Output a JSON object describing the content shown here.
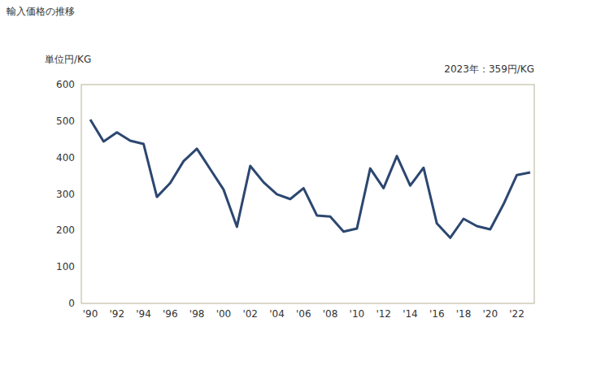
{
  "chart_data": {
    "type": "line",
    "title": "輸入価格の推移",
    "y_label": "単位円/KG",
    "annotation": "2023年：359円/KG",
    "categories": [
      "'90",
      null,
      "'92",
      null,
      "'94",
      null,
      "'96",
      null,
      "'98",
      null,
      "'00",
      null,
      "'02",
      null,
      "'04",
      null,
      "'06",
      null,
      "'08",
      null,
      "'10",
      null,
      "'12",
      null,
      "'14",
      null,
      "'16",
      null,
      "'18",
      null,
      "'20",
      null,
      "'22",
      null
    ],
    "values": [
      504,
      444,
      469,
      446,
      437,
      292,
      330,
      390,
      424,
      368,
      312,
      210,
      377,
      332,
      299,
      286,
      316,
      241,
      238,
      197,
      205,
      370,
      316,
      404,
      323,
      372,
      219,
      180,
      232,
      212,
      203,
      272,
      352,
      359
    ],
    "color": "#2c4770",
    "ylim": [
      0,
      600
    ],
    "yticks": [
      0,
      100,
      200,
      300,
      400,
      500,
      600
    ],
    "grid": false
  }
}
